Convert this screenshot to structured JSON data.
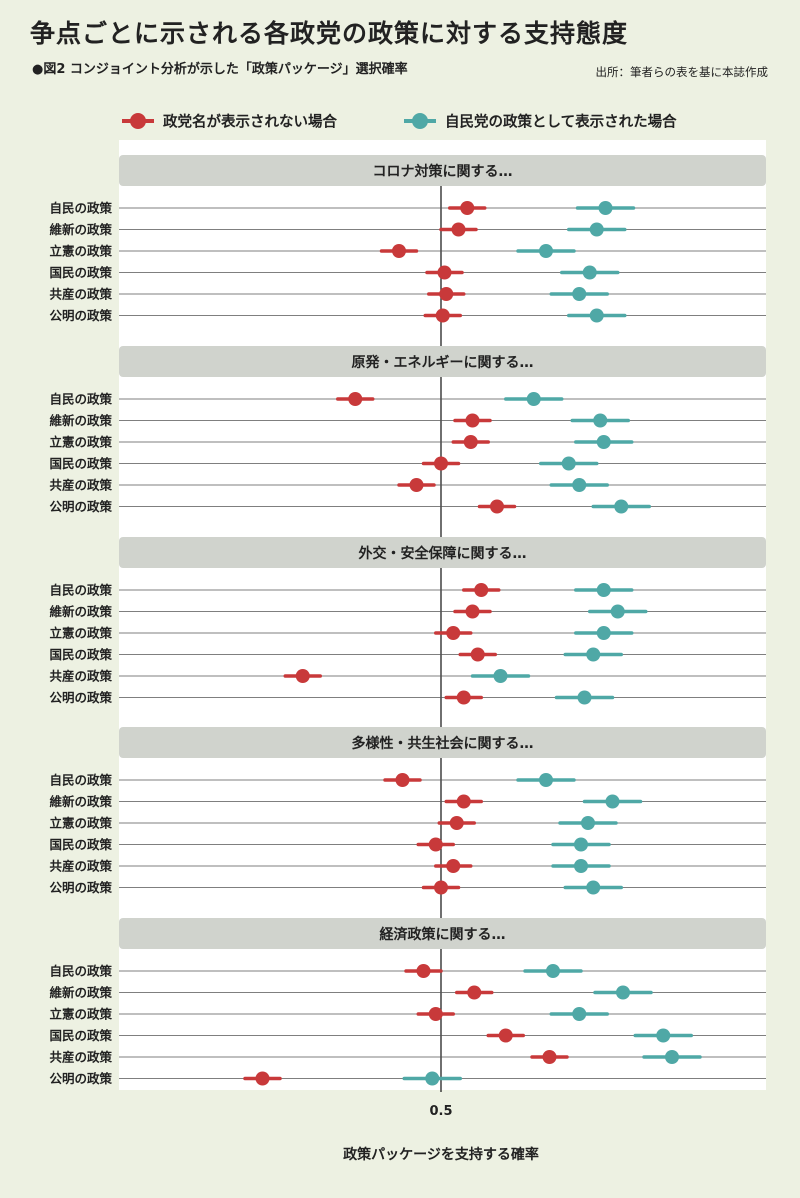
{
  "title": "争点ごとに示される各政党の政策に対する支持態度",
  "subtitle": "●図2 コンジョイント分析が示した「政策パッケージ」選択確率",
  "source": "出所：筆者らの表を基に本誌作成",
  "colors": {
    "red": "#c8393a",
    "teal": "#4fa8a6",
    "panel_header": "#d0d3cd",
    "background": "#edf1e2"
  },
  "chart_data": {
    "type": "scatter",
    "style": "dot-and-whisker",
    "xlabel": "政策パッケージを支持する確率",
    "reference_line": 0.5,
    "x_tick_labels": [
      "0.5"
    ],
    "legend_position": "top",
    "series": [
      {
        "name": "政党名が表示されない場合",
        "color": "#c8393a"
      },
      {
        "name": "自民党の政策として表示された場合",
        "color": "#4fa8a6"
      }
    ],
    "rows": [
      "自民の政策",
      "維新の政策",
      "立憲の政策",
      "国民の政策",
      "共産の政策",
      "公明の政策"
    ],
    "panels": [
      {
        "title": "コロナ対策に関する…",
        "red": [
          [
            0.515,
            0.505,
            0.525
          ],
          [
            0.51,
            0.5,
            0.52
          ],
          [
            0.476,
            0.466,
            0.486
          ],
          [
            0.502,
            0.492,
            0.512
          ],
          [
            0.503,
            0.493,
            0.513
          ],
          [
            0.501,
            0.491,
            0.511
          ]
        ],
        "teal": [
          [
            0.594,
            0.578,
            0.61
          ],
          [
            0.589,
            0.573,
            0.605
          ],
          [
            0.56,
            0.544,
            0.576
          ],
          [
            0.585,
            0.569,
            0.601
          ],
          [
            0.579,
            0.563,
            0.595
          ],
          [
            0.589,
            0.573,
            0.605
          ]
        ]
      },
      {
        "title": "原発・エネルギーに関する…",
        "red": [
          [
            0.451,
            0.441,
            0.461
          ],
          [
            0.518,
            0.508,
            0.528
          ],
          [
            0.517,
            0.507,
            0.527
          ],
          [
            0.5,
            0.49,
            0.51
          ],
          [
            0.486,
            0.476,
            0.496
          ],
          [
            0.532,
            0.522,
            0.542
          ]
        ],
        "teal": [
          [
            0.553,
            0.537,
            0.569
          ],
          [
            0.591,
            0.575,
            0.607
          ],
          [
            0.593,
            0.577,
            0.609
          ],
          [
            0.573,
            0.557,
            0.589
          ],
          [
            0.579,
            0.563,
            0.595
          ],
          [
            0.603,
            0.587,
            0.619
          ]
        ]
      },
      {
        "title": "外交・安全保障に関する…",
        "red": [
          [
            0.523,
            0.513,
            0.533
          ],
          [
            0.518,
            0.508,
            0.528
          ],
          [
            0.507,
            0.497,
            0.517
          ],
          [
            0.521,
            0.511,
            0.531
          ],
          [
            0.421,
            0.411,
            0.431
          ],
          [
            0.513,
            0.503,
            0.523
          ]
        ],
        "teal": [
          [
            0.593,
            0.577,
            0.609
          ],
          [
            0.601,
            0.585,
            0.617
          ],
          [
            0.593,
            0.577,
            0.609
          ],
          [
            0.587,
            0.571,
            0.603
          ],
          [
            0.534,
            0.518,
            0.55
          ],
          [
            0.582,
            0.566,
            0.598
          ]
        ]
      },
      {
        "title": "多様性・共生社会に関する…",
        "red": [
          [
            0.478,
            0.468,
            0.488
          ],
          [
            0.513,
            0.503,
            0.523
          ],
          [
            0.509,
            0.499,
            0.519
          ],
          [
            0.497,
            0.487,
            0.507
          ],
          [
            0.507,
            0.497,
            0.517
          ],
          [
            0.5,
            0.49,
            0.51
          ]
        ],
        "teal": [
          [
            0.56,
            0.544,
            0.576
          ],
          [
            0.598,
            0.582,
            0.614
          ],
          [
            0.584,
            0.568,
            0.6
          ],
          [
            0.58,
            0.564,
            0.596
          ],
          [
            0.58,
            0.564,
            0.596
          ],
          [
            0.587,
            0.571,
            0.603
          ]
        ]
      },
      {
        "title": "経済政策に関する…",
        "red": [
          [
            0.49,
            0.48,
            0.5
          ],
          [
            0.519,
            0.509,
            0.529
          ],
          [
            0.497,
            0.487,
            0.507
          ],
          [
            0.537,
            0.527,
            0.547
          ],
          [
            0.562,
            0.552,
            0.572
          ],
          [
            0.398,
            0.388,
            0.408
          ]
        ],
        "teal": [
          [
            0.564,
            0.548,
            0.58
          ],
          [
            0.604,
            0.588,
            0.62
          ],
          [
            0.579,
            0.563,
            0.595
          ],
          [
            0.627,
            0.611,
            0.643
          ],
          [
            0.632,
            0.616,
            0.648
          ],
          [
            0.495,
            0.479,
            0.511
          ]
        ]
      }
    ]
  }
}
